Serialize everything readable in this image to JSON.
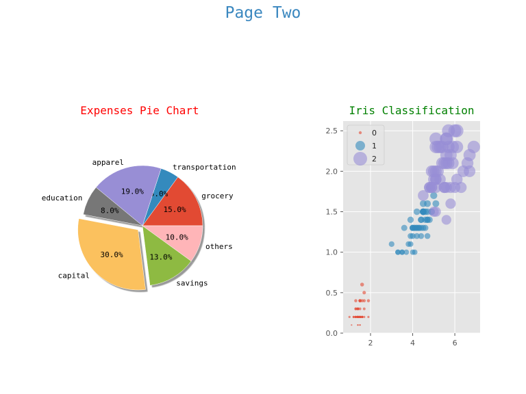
{
  "page": {
    "title": "Page Two"
  },
  "chart_data": [
    {
      "type": "pie",
      "title": "Expenses Pie Chart",
      "title_color": "#ff0000",
      "slices": [
        {
          "label": "grocery",
          "value": 15.0,
          "pct_text": "15.0%",
          "color": "#e24a33",
          "explode": false
        },
        {
          "label": "transportation",
          "value": 5.0,
          "pct_text": "5.0%",
          "color": "#348abd",
          "explode": false
        },
        {
          "label": "apparel",
          "value": 19.0,
          "pct_text": "19.0%",
          "color": "#988ed5",
          "explode": false
        },
        {
          "label": "education",
          "value": 8.0,
          "pct_text": "8.0%",
          "color": "#777777",
          "explode": false
        },
        {
          "label": "capital",
          "value": 30.0,
          "pct_text": "30.0%",
          "color": "#fbc15e",
          "explode": true
        },
        {
          "label": "savings",
          "value": 13.0,
          "pct_text": "13.0%",
          "color": "#8eba42",
          "explode": false
        },
        {
          "label": "others",
          "value": 10.0,
          "pct_text": "10.0%",
          "color": "#ffb5b8",
          "explode": false
        }
      ],
      "start_angle_deg": 0,
      "shadow": true
    },
    {
      "type": "scatter",
      "title": "Iris Classification",
      "title_color": "#008000",
      "xlim": [
        0.7,
        7.2
      ],
      "ylim": [
        0.0,
        2.62
      ],
      "xticks": [
        2,
        4,
        6
      ],
      "yticks": [
        0.0,
        0.5,
        1.0,
        1.5,
        2.0,
        2.5
      ],
      "ytick_labels": [
        "0.0",
        "0.5",
        "1.0",
        "1.5",
        "2.0",
        "2.5"
      ],
      "grid": true,
      "background": "#e5e5e5",
      "legend": {
        "placement": "upper-left",
        "entries": [
          "0",
          "1",
          "2"
        ]
      },
      "series": [
        {
          "name": "0",
          "color": "#e24a33",
          "points": [
            [
              1.4,
              0.2
            ],
            [
              1.4,
              0.2
            ],
            [
              1.3,
              0.2
            ],
            [
              1.5,
              0.2
            ],
            [
              1.4,
              0.2
            ],
            [
              1.7,
              0.4
            ],
            [
              1.4,
              0.3
            ],
            [
              1.5,
              0.2
            ],
            [
              1.4,
              0.2
            ],
            [
              1.5,
              0.1
            ],
            [
              1.5,
              0.2
            ],
            [
              1.6,
              0.2
            ],
            [
              1.4,
              0.1
            ],
            [
              1.1,
              0.1
            ],
            [
              1.2,
              0.2
            ],
            [
              1.5,
              0.4
            ],
            [
              1.3,
              0.4
            ],
            [
              1.4,
              0.3
            ],
            [
              1.7,
              0.3
            ],
            [
              1.5,
              0.3
            ],
            [
              1.7,
              0.2
            ],
            [
              1.5,
              0.4
            ],
            [
              1.0,
              0.2
            ],
            [
              1.7,
              0.5
            ],
            [
              1.9,
              0.2
            ],
            [
              1.6,
              0.2
            ],
            [
              1.6,
              0.4
            ],
            [
              1.5,
              0.2
            ],
            [
              1.4,
              0.2
            ],
            [
              1.6,
              0.2
            ],
            [
              1.6,
              0.2
            ],
            [
              1.5,
              0.4
            ],
            [
              1.5,
              0.1
            ],
            [
              1.4,
              0.2
            ],
            [
              1.5,
              0.2
            ],
            [
              1.2,
              0.2
            ],
            [
              1.3,
              0.2
            ],
            [
              1.4,
              0.1
            ],
            [
              1.3,
              0.2
            ],
            [
              1.5,
              0.2
            ],
            [
              1.3,
              0.3
            ],
            [
              1.3,
              0.3
            ],
            [
              1.3,
              0.2
            ],
            [
              1.6,
              0.6
            ],
            [
              1.9,
              0.4
            ],
            [
              1.4,
              0.3
            ],
            [
              1.6,
              0.2
            ],
            [
              1.4,
              0.2
            ],
            [
              1.5,
              0.2
            ],
            [
              1.4,
              0.2
            ]
          ]
        },
        {
          "name": "1",
          "color": "#348abd",
          "points": [
            [
              4.7,
              1.4
            ],
            [
              4.5,
              1.5
            ],
            [
              4.9,
              1.5
            ],
            [
              4.0,
              1.3
            ],
            [
              4.6,
              1.5
            ],
            [
              4.5,
              1.3
            ],
            [
              4.7,
              1.6
            ],
            [
              3.3,
              1.0
            ],
            [
              4.6,
              1.3
            ],
            [
              3.9,
              1.4
            ],
            [
              3.5,
              1.0
            ],
            [
              4.2,
              1.5
            ],
            [
              4.0,
              1.0
            ],
            [
              4.7,
              1.4
            ],
            [
              3.6,
              1.3
            ],
            [
              4.4,
              1.4
            ],
            [
              4.5,
              1.5
            ],
            [
              4.1,
              1.0
            ],
            [
              4.5,
              1.5
            ],
            [
              3.9,
              1.1
            ],
            [
              4.8,
              1.8
            ],
            [
              4.0,
              1.3
            ],
            [
              4.9,
              1.5
            ],
            [
              4.7,
              1.2
            ],
            [
              4.3,
              1.3
            ],
            [
              4.4,
              1.4
            ],
            [
              4.8,
              1.4
            ],
            [
              5.0,
              1.7
            ],
            [
              4.5,
              1.5
            ],
            [
              3.5,
              1.0
            ],
            [
              3.8,
              1.1
            ],
            [
              3.7,
              1.0
            ],
            [
              3.9,
              1.2
            ],
            [
              5.1,
              1.6
            ],
            [
              4.5,
              1.5
            ],
            [
              4.5,
              1.6
            ],
            [
              4.7,
              1.5
            ],
            [
              4.4,
              1.3
            ],
            [
              4.1,
              1.3
            ],
            [
              4.0,
              1.3
            ],
            [
              4.4,
              1.2
            ],
            [
              4.6,
              1.4
            ],
            [
              4.0,
              1.2
            ],
            [
              3.3,
              1.0
            ],
            [
              4.2,
              1.3
            ],
            [
              4.2,
              1.2
            ],
            [
              4.2,
              1.3
            ],
            [
              4.3,
              1.3
            ],
            [
              3.0,
              1.1
            ],
            [
              4.1,
              1.3
            ]
          ]
        },
        {
          "name": "2",
          "color": "#988ed5",
          "points": [
            [
              6.0,
              2.5
            ],
            [
              5.1,
              1.9
            ],
            [
              5.9,
              2.1
            ],
            [
              5.6,
              1.8
            ],
            [
              5.8,
              2.2
            ],
            [
              6.6,
              2.1
            ],
            [
              4.5,
              1.7
            ],
            [
              6.3,
              1.8
            ],
            [
              5.8,
              1.8
            ],
            [
              6.1,
              2.5
            ],
            [
              5.1,
              2.0
            ],
            [
              5.3,
              1.9
            ],
            [
              5.5,
              2.1
            ],
            [
              5.0,
              2.0
            ],
            [
              5.1,
              2.4
            ],
            [
              5.3,
              2.3
            ],
            [
              5.5,
              1.8
            ],
            [
              6.7,
              2.2
            ],
            [
              6.9,
              2.3
            ],
            [
              5.0,
              1.5
            ],
            [
              5.7,
              2.3
            ],
            [
              4.9,
              2.0
            ],
            [
              6.7,
              2.0
            ],
            [
              4.9,
              1.8
            ],
            [
              5.7,
              2.1
            ],
            [
              6.0,
              1.8
            ],
            [
              4.8,
              1.8
            ],
            [
              4.9,
              1.8
            ],
            [
              5.6,
              2.1
            ],
            [
              5.8,
              1.6
            ],
            [
              6.1,
              1.9
            ],
            [
              6.4,
              2.0
            ],
            [
              5.6,
              2.2
            ],
            [
              5.1,
              1.5
            ],
            [
              5.6,
              1.4
            ],
            [
              6.1,
              2.3
            ],
            [
              5.6,
              2.4
            ],
            [
              5.5,
              1.8
            ],
            [
              4.8,
              1.8
            ],
            [
              5.4,
              2.1
            ],
            [
              5.6,
              2.4
            ],
            [
              5.1,
              2.3
            ],
            [
              5.1,
              1.9
            ],
            [
              5.9,
              2.3
            ],
            [
              5.7,
              2.5
            ],
            [
              5.2,
              2.3
            ],
            [
              5.0,
              1.9
            ],
            [
              5.2,
              2.0
            ],
            [
              5.4,
              2.3
            ],
            [
              5.1,
              1.8
            ]
          ]
        }
      ]
    }
  ]
}
